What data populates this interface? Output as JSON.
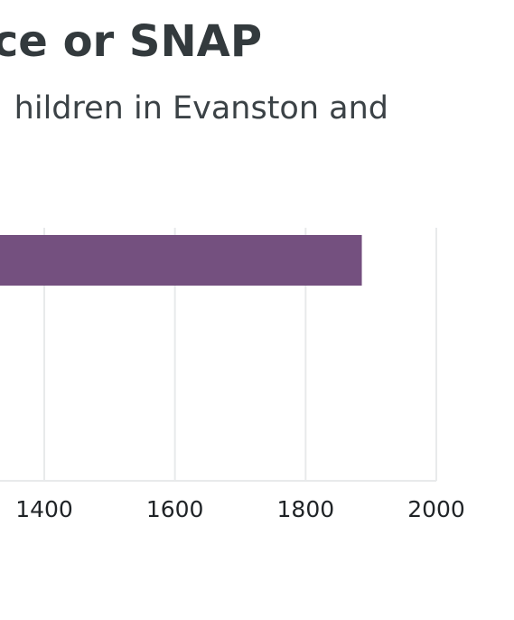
{
  "chart_data": {
    "type": "bar",
    "orientation": "horizontal",
    "title": "ce or SNAP",
    "subtitle": "hildren in Evanston and",
    "xlabel": "",
    "ylabel": "",
    "categories": [
      ""
    ],
    "values": [
      1886
    ],
    "x_ticks": [
      "1400",
      "1600",
      "1800",
      "2000"
    ],
    "x_tick_values": [
      1400,
      1600,
      1800,
      2000
    ],
    "grid": true,
    "legend": "none",
    "bar_color": "#74507f",
    "grid_color": "#e8eaeb"
  }
}
